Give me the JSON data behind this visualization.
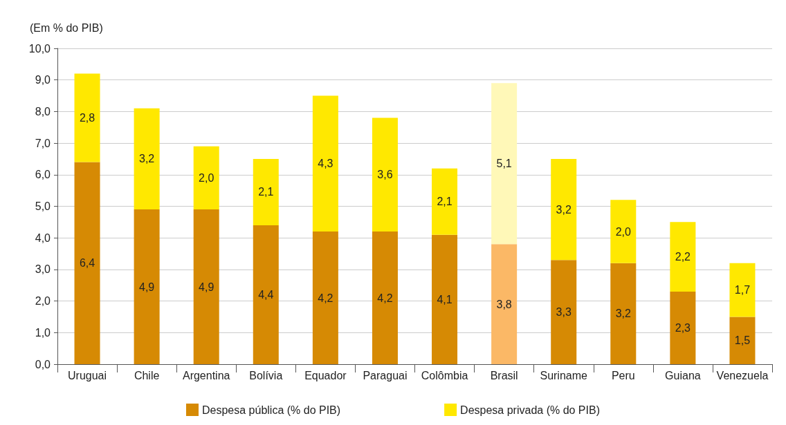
{
  "chart_data": {
    "type": "bar",
    "stacked": true,
    "ylabel": "(Em % do PIB)",
    "categories": [
      "Uruguai",
      "Chile",
      "Argentina",
      "Bolívia",
      "Equador",
      "Paraguai",
      "Colômbia",
      "Brasil",
      "Suriname",
      "Peru",
      "Guiana",
      "Venezuela"
    ],
    "series": [
      {
        "name": "Despesa pública (% do PIB)",
        "color": "#d68a04",
        "colors": [
          "#d68a04",
          "#d68a04",
          "#d68a04",
          "#d68a04",
          "#d68a04",
          "#d68a04",
          "#d68a04",
          "#fbb866",
          "#d68a04",
          "#d68a04",
          "#d68a04",
          "#d68a04"
        ],
        "values": [
          6.4,
          4.9,
          4.9,
          4.4,
          4.2,
          4.2,
          4.1,
          3.8,
          3.3,
          3.2,
          2.3,
          1.5
        ],
        "value_labels": [
          "6,4",
          "4,9",
          "4,9",
          "4,4",
          "4,2",
          "4,2",
          "4,1",
          "3,8",
          "3,3",
          "3,2",
          "2,3",
          "1,5"
        ]
      },
      {
        "name": "Despesa privada (% do PIB)",
        "color": "#ffe800",
        "colors": [
          "#ffe800",
          "#ffe800",
          "#ffe800",
          "#ffe800",
          "#ffe800",
          "#ffe800",
          "#ffe800",
          "#fff8b8",
          "#ffe800",
          "#ffe800",
          "#ffe800",
          "#ffe800"
        ],
        "values": [
          2.8,
          3.2,
          2.0,
          2.1,
          4.3,
          3.6,
          2.1,
          5.1,
          3.2,
          2.0,
          2.2,
          1.7
        ],
        "value_labels": [
          "2,8",
          "3,2",
          "2,0",
          "2,1",
          "4,3",
          "3,6",
          "2,1",
          "5,1",
          "3,2",
          "2,0",
          "2,2",
          "1,7"
        ]
      }
    ],
    "ylim": [
      0,
      10
    ],
    "yticks": [
      {
        "value": 0,
        "label": "0,0"
      },
      {
        "value": 1,
        "label": "1,0"
      },
      {
        "value": 2,
        "label": "2,0"
      },
      {
        "value": 3,
        "label": "3,0"
      },
      {
        "value": 4,
        "label": "4,0"
      },
      {
        "value": 5,
        "label": "5,0"
      },
      {
        "value": 6,
        "label": "6,0"
      },
      {
        "value": 7,
        "label": "7,0"
      },
      {
        "value": 8,
        "label": "8,0"
      },
      {
        "value": 9,
        "label": "9,0"
      },
      {
        "value": 10,
        "label": "10,0"
      }
    ],
    "grid": "y",
    "legend": "bottom"
  }
}
